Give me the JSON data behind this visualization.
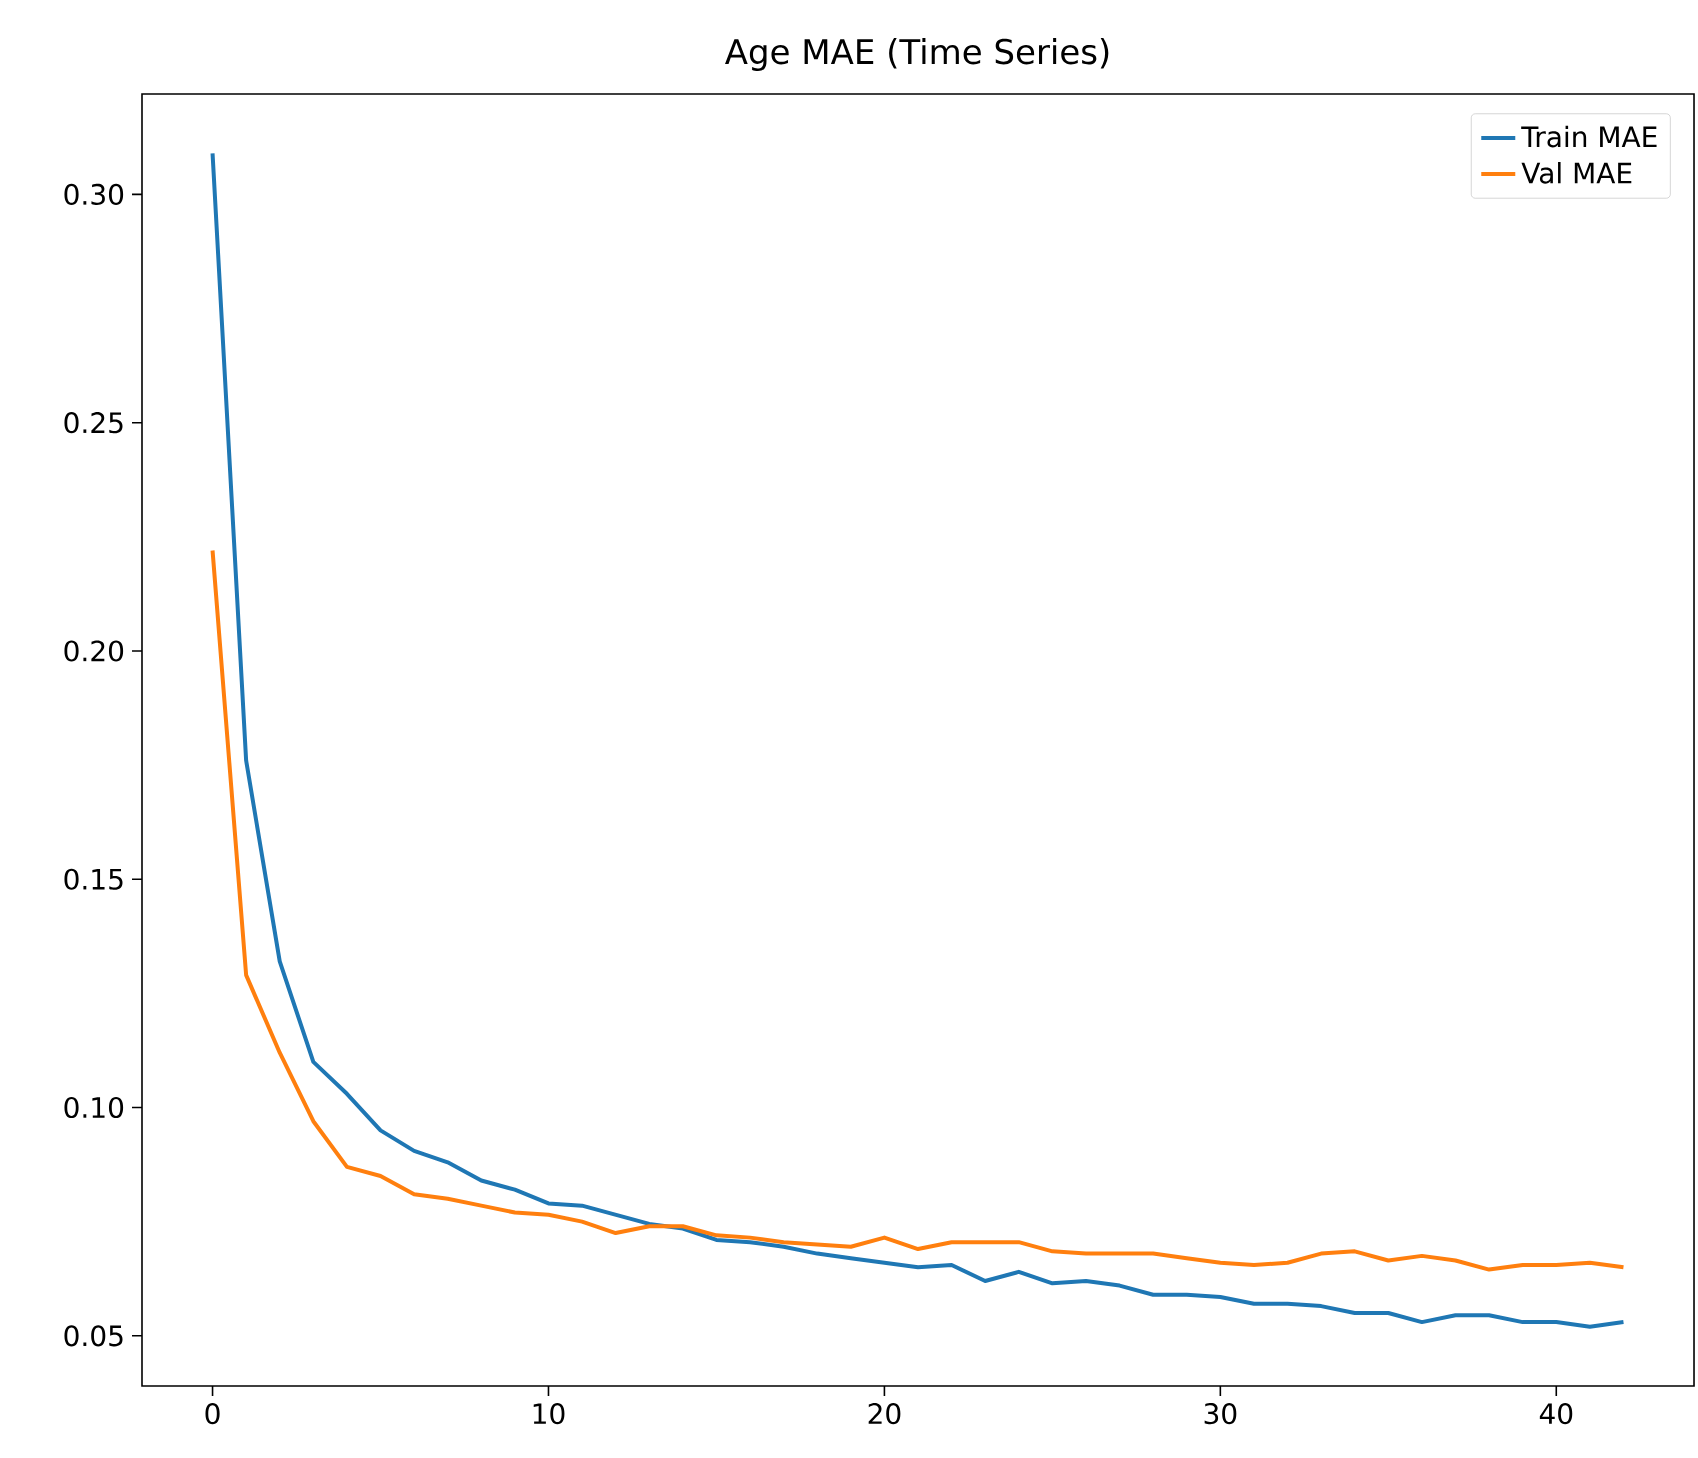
{
  "chart_data": {
    "type": "line",
    "title": "Age MAE (Time Series)",
    "x": [
      0,
      1,
      2,
      3,
      4,
      5,
      6,
      7,
      8,
      9,
      10,
      11,
      12,
      13,
      14,
      15,
      16,
      17,
      18,
      19,
      20,
      21,
      22,
      23,
      24,
      25,
      26,
      27,
      28,
      29,
      30,
      31,
      32,
      33,
      34,
      35,
      36,
      37,
      38,
      39,
      40,
      41,
      42
    ],
    "series": [
      {
        "name": "Train MAE",
        "color": "#1f77b4",
        "values": [
          0.309,
          0.176,
          0.132,
          0.11,
          0.103,
          0.095,
          0.0905,
          0.088,
          0.084,
          0.082,
          0.079,
          0.0785,
          0.0765,
          0.0745,
          0.0735,
          0.071,
          0.0705,
          0.0695,
          0.068,
          0.067,
          0.066,
          0.065,
          0.0655,
          0.062,
          0.064,
          0.0615,
          0.062,
          0.061,
          0.059,
          0.059,
          0.0585,
          0.057,
          0.057,
          0.0565,
          0.055,
          0.055,
          0.053,
          0.0545,
          0.0545,
          0.053,
          0.053,
          0.052,
          0.053
        ]
      },
      {
        "name": "Val MAE",
        "color": "#ff7f0e",
        "values": [
          0.222,
          0.129,
          0.112,
          0.097,
          0.087,
          0.085,
          0.081,
          0.08,
          0.0785,
          0.077,
          0.0765,
          0.075,
          0.0725,
          0.074,
          0.074,
          0.072,
          0.0715,
          0.0705,
          0.07,
          0.0695,
          0.0715,
          0.069,
          0.0705,
          0.0705,
          0.0705,
          0.0685,
          0.068,
          0.068,
          0.068,
          0.067,
          0.066,
          0.0655,
          0.066,
          0.068,
          0.0685,
          0.0665,
          0.0675,
          0.0665,
          0.0645,
          0.0655,
          0.0655,
          0.066,
          0.065
        ]
      }
    ],
    "xlim": [
      -2.1,
      44.1
    ],
    "ylim": [
      0.039,
      0.322
    ],
    "xticks": [
      0,
      10,
      20,
      30,
      40
    ],
    "yticks": [
      {
        "value": 0.05,
        "label": "0.05"
      },
      {
        "value": 0.1,
        "label": "0.10"
      },
      {
        "value": 0.15,
        "label": "0.15"
      },
      {
        "value": 0.2,
        "label": "0.20"
      },
      {
        "value": 0.25,
        "label": "0.25"
      },
      {
        "value": 0.3,
        "label": "0.30"
      }
    ],
    "legend": "top right",
    "grid": false,
    "line_style": "solid",
    "marker": "none"
  }
}
